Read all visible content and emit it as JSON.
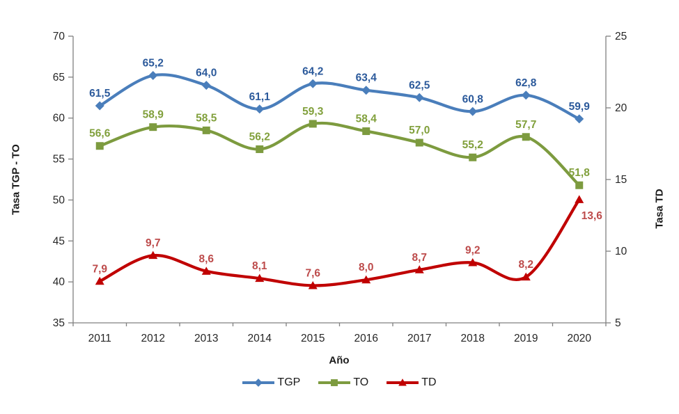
{
  "chart_data": {
    "type": "line",
    "title": "",
    "categories": [
      "2011",
      "2012",
      "2013",
      "2014",
      "2015",
      "2016",
      "2017",
      "2018",
      "2019",
      "2020"
    ],
    "series": [
      {
        "name": "TGP",
        "axis": "left",
        "color": "#4A7EBB",
        "label_color": "#2C5A9B",
        "marker": "diamond",
        "values": [
          61.5,
          65.2,
          64.0,
          61.1,
          64.2,
          63.4,
          62.5,
          60.8,
          62.8,
          59.9
        ]
      },
      {
        "name": "TO",
        "axis": "left",
        "color": "#7D9B3F",
        "label_color": "#81A03C",
        "marker": "square",
        "values": [
          56.6,
          58.9,
          58.5,
          56.2,
          59.3,
          58.4,
          57.0,
          55.2,
          57.7,
          51.8
        ]
      },
      {
        "name": "TD",
        "axis": "right",
        "color": "#C00000",
        "label_color": "#BD4B4B",
        "marker": "triangle",
        "values": [
          7.9,
          9.7,
          8.6,
          8.1,
          7.6,
          8.0,
          8.7,
          9.2,
          8.2,
          13.6
        ],
        "label_overrides": {
          "9": "below-right"
        }
      }
    ],
    "left_axis": {
      "label": "Tasa TGP - TO",
      "min": 35,
      "max": 70,
      "step": 5,
      "ticks": [
        35,
        40,
        45,
        50,
        55,
        60,
        65,
        70
      ]
    },
    "right_axis": {
      "label": "Tasa TD",
      "min": 5,
      "max": 25,
      "step": 5,
      "ticks": [
        5,
        10,
        15,
        20,
        25
      ]
    },
    "xlabel": "Año",
    "legend": {
      "position": "bottom",
      "items": [
        "TGP",
        "TO",
        "TD"
      ]
    },
    "grid": false,
    "smoothed_lines": true,
    "decimal_separator": ",",
    "axis_color": "#808080",
    "tick_label_color": "#262626"
  }
}
